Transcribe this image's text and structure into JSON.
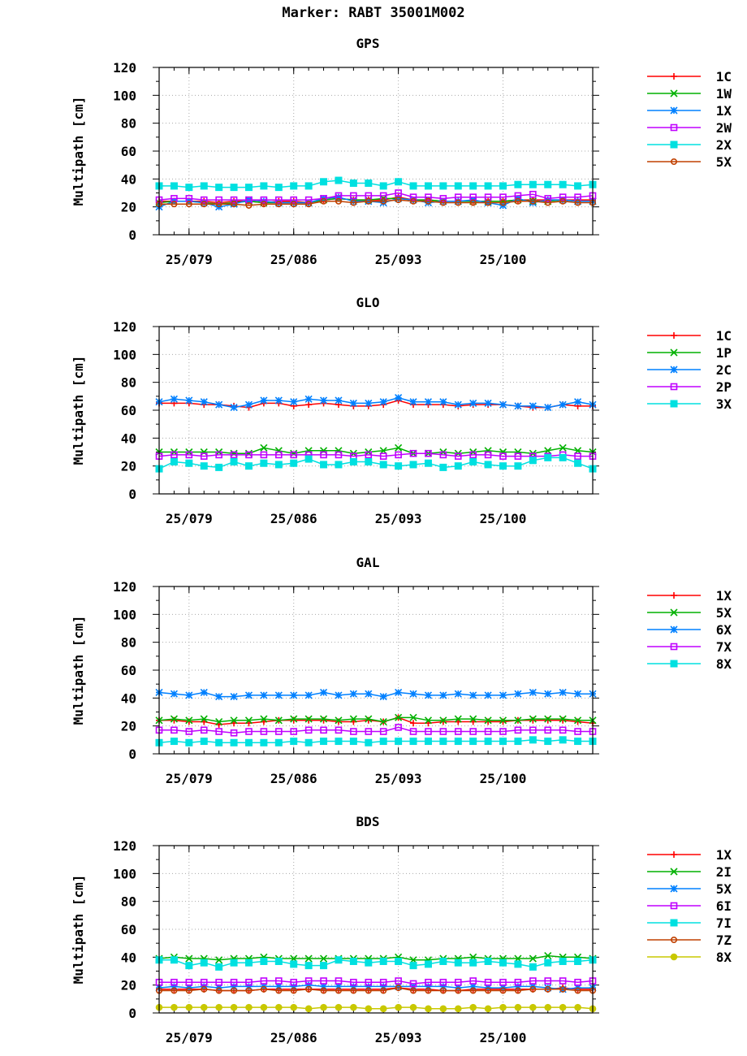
{
  "title": "Marker: RABT 35001M002",
  "colors": {
    "1C": "#ff0000",
    "1W": "#00b000",
    "1X_gps": "#0080ff",
    "2W": "#c000ff",
    "2X": "#00e0e0",
    "5X_gps": "#c04000"
  },
  "chart_data": [
    {
      "type": "line",
      "title": "GPS",
      "ylabel": "Multipath [cm]",
      "ylim": [
        0,
        120
      ],
      "yticks": [
        0,
        20,
        40,
        60,
        80,
        100,
        120
      ],
      "xlim": [
        1,
        30
      ],
      "xticks": [
        {
          "x": 3,
          "label": "25/079"
        },
        {
          "x": 10,
          "label": "25/086"
        },
        {
          "x": 17,
          "label": "25/093"
        },
        {
          "x": 24,
          "label": "25/100"
        }
      ],
      "x": [
        1,
        2,
        3,
        4,
        5,
        6,
        7,
        8,
        9,
        10,
        11,
        12,
        13,
        14,
        15,
        16,
        17,
        18,
        19,
        20,
        21,
        22,
        23,
        24,
        25,
        26,
        27,
        28,
        29,
        30
      ],
      "series": [
        {
          "name": "1C",
          "color": "#ff0000",
          "marker": "plus",
          "values": [
            24,
            24,
            24,
            24,
            23,
            24,
            24,
            23,
            24,
            24,
            23,
            25,
            26,
            25,
            25,
            25,
            27,
            25,
            25,
            24,
            24,
            24,
            24,
            24,
            25,
            25,
            25,
            25,
            25,
            25
          ]
        },
        {
          "name": "1W",
          "color": "#00b000",
          "marker": "x",
          "values": [
            23,
            24,
            24,
            23,
            22,
            23,
            24,
            23,
            23,
            23,
            23,
            25,
            26,
            25,
            25,
            26,
            26,
            25,
            25,
            24,
            24,
            24,
            24,
            24,
            25,
            24,
            24,
            25,
            24,
            24
          ]
        },
        {
          "name": "1X",
          "color": "#0080ff",
          "marker": "star",
          "values": [
            20,
            24,
            24,
            23,
            20,
            22,
            25,
            24,
            23,
            23,
            23,
            26,
            27,
            24,
            24,
            23,
            26,
            25,
            23,
            24,
            24,
            25,
            23,
            21,
            26,
            23,
            25,
            25,
            24,
            24
          ]
        },
        {
          "name": "2W",
          "color": "#c000ff",
          "marker": "square",
          "values": [
            25,
            26,
            26,
            25,
            25,
            25,
            25,
            25,
            25,
            25,
            25,
            26,
            28,
            28,
            28,
            28,
            30,
            27,
            27,
            26,
            27,
            27,
            27,
            27,
            28,
            29,
            26,
            27,
            27,
            28
          ]
        },
        {
          "name": "2X",
          "color": "#00e0e0",
          "marker": "filledsquare",
          "values": [
            35,
            35,
            34,
            35,
            34,
            34,
            34,
            35,
            34,
            35,
            35,
            38,
            39,
            37,
            37,
            35,
            38,
            35,
            35,
            35,
            35,
            35,
            35,
            35,
            36,
            36,
            36,
            36,
            35,
            36
          ]
        },
        {
          "name": "5X",
          "color": "#c04000",
          "marker": "circle",
          "values": [
            22,
            22,
            22,
            22,
            22,
            22,
            21,
            22,
            22,
            22,
            22,
            24,
            24,
            23,
            24,
            24,
            25,
            24,
            24,
            23,
            23,
            23,
            23,
            23,
            24,
            24,
            23,
            24,
            23,
            23
          ]
        }
      ]
    },
    {
      "type": "line",
      "title": "GLO",
      "ylabel": "Multipath [cm]",
      "ylim": [
        0,
        120
      ],
      "yticks": [
        0,
        20,
        40,
        60,
        80,
        100,
        120
      ],
      "xlim": [
        1,
        30
      ],
      "xticks": [
        {
          "x": 3,
          "label": "25/079"
        },
        {
          "x": 10,
          "label": "25/086"
        },
        {
          "x": 17,
          "label": "25/093"
        },
        {
          "x": 24,
          "label": "25/100"
        }
      ],
      "x": [
        1,
        2,
        3,
        4,
        5,
        6,
        7,
        8,
        9,
        10,
        11,
        12,
        13,
        14,
        15,
        16,
        17,
        18,
        19,
        20,
        21,
        22,
        23,
        24,
        25,
        26,
        27,
        28,
        29,
        30
      ],
      "series": [
        {
          "name": "1C",
          "color": "#ff0000",
          "marker": "plus",
          "values": [
            65,
            65,
            65,
            64,
            64,
            63,
            62,
            65,
            65,
            63,
            64,
            65,
            64,
            63,
            63,
            64,
            67,
            64,
            64,
            64,
            63,
            64,
            64,
            64,
            63,
            62,
            62,
            64,
            63,
            63
          ]
        },
        {
          "name": "1P",
          "color": "#00b000",
          "marker": "x",
          "values": [
            30,
            30,
            30,
            30,
            30,
            29,
            29,
            33,
            31,
            29,
            31,
            31,
            31,
            29,
            30,
            31,
            33,
            29,
            29,
            30,
            29,
            30,
            31,
            30,
            30,
            29,
            31,
            33,
            31,
            30
          ]
        },
        {
          "name": "2C",
          "color": "#0080ff",
          "marker": "star",
          "values": [
            66,
            68,
            67,
            66,
            64,
            62,
            64,
            67,
            67,
            66,
            68,
            67,
            67,
            65,
            65,
            66,
            69,
            66,
            66,
            66,
            64,
            65,
            65,
            64,
            63,
            63,
            62,
            64,
            66,
            64
          ]
        },
        {
          "name": "2P",
          "color": "#c000ff",
          "marker": "square",
          "values": [
            27,
            28,
            28,
            27,
            28,
            28,
            28,
            28,
            28,
            28,
            28,
            28,
            28,
            27,
            28,
            27,
            28,
            29,
            29,
            28,
            27,
            28,
            28,
            27,
            27,
            27,
            27,
            28,
            27,
            27
          ]
        },
        {
          "name": "3X",
          "color": "#00e0e0",
          "marker": "filledsquare",
          "values": [
            18,
            23,
            22,
            20,
            19,
            23,
            20,
            22,
            21,
            22,
            25,
            21,
            21,
            23,
            23,
            21,
            20,
            21,
            22,
            19,
            20,
            23,
            21,
            20,
            20,
            24,
            26,
            26,
            22,
            18
          ]
        }
      ]
    },
    {
      "type": "line",
      "title": "GAL",
      "ylabel": "Multipath [cm]",
      "ylim": [
        0,
        120
      ],
      "yticks": [
        0,
        20,
        40,
        60,
        80,
        100,
        120
      ],
      "xlim": [
        1,
        30
      ],
      "xticks": [
        {
          "x": 3,
          "label": "25/079"
        },
        {
          "x": 10,
          "label": "25/086"
        },
        {
          "x": 17,
          "label": "25/093"
        },
        {
          "x": 24,
          "label": "25/100"
        }
      ],
      "x": [
        1,
        2,
        3,
        4,
        5,
        6,
        7,
        8,
        9,
        10,
        11,
        12,
        13,
        14,
        15,
        16,
        17,
        18,
        19,
        20,
        21,
        22,
        23,
        24,
        25,
        26,
        27,
        28,
        29,
        30
      ],
      "series": [
        {
          "name": "1X",
          "color": "#ff0000",
          "marker": "plus",
          "values": [
            24,
            24,
            23,
            23,
            21,
            22,
            22,
            23,
            24,
            24,
            24,
            24,
            23,
            23,
            24,
            23,
            26,
            22,
            22,
            23,
            23,
            23,
            23,
            23,
            24,
            24,
            24,
            24,
            23,
            22
          ]
        },
        {
          "name": "5X",
          "color": "#00b000",
          "marker": "x",
          "values": [
            24,
            25,
            24,
            25,
            23,
            24,
            24,
            25,
            24,
            25,
            25,
            25,
            24,
            25,
            25,
            23,
            26,
            26,
            24,
            24,
            25,
            25,
            24,
            24,
            24,
            25,
            25,
            25,
            24,
            24
          ]
        },
        {
          "name": "6X",
          "color": "#0080ff",
          "marker": "star",
          "values": [
            44,
            43,
            42,
            44,
            41,
            41,
            42,
            42,
            42,
            42,
            42,
            44,
            42,
            43,
            43,
            41,
            44,
            43,
            42,
            42,
            43,
            42,
            42,
            42,
            43,
            44,
            43,
            44,
            43,
            43
          ]
        },
        {
          "name": "7X",
          "color": "#c000ff",
          "marker": "square",
          "values": [
            17,
            17,
            16,
            17,
            16,
            15,
            16,
            16,
            16,
            16,
            17,
            17,
            17,
            16,
            16,
            16,
            19,
            16,
            16,
            16,
            16,
            16,
            16,
            16,
            17,
            17,
            17,
            17,
            16,
            16
          ]
        },
        {
          "name": "8X",
          "color": "#00e0e0",
          "marker": "filledsquare",
          "values": [
            8,
            9,
            8,
            9,
            8,
            8,
            8,
            8,
            8,
            9,
            8,
            9,
            9,
            9,
            8,
            9,
            9,
            9,
            9,
            9,
            9,
            9,
            9,
            9,
            9,
            10,
            9,
            10,
            9,
            9
          ]
        }
      ]
    },
    {
      "type": "line",
      "title": "BDS",
      "ylabel": "Multipath [cm]",
      "ylim": [
        0,
        120
      ],
      "yticks": [
        0,
        20,
        40,
        60,
        80,
        100,
        120
      ],
      "xlim": [
        1,
        30
      ],
      "xticks": [
        {
          "x": 3,
          "label": "25/079"
        },
        {
          "x": 10,
          "label": "25/086"
        },
        {
          "x": 17,
          "label": "25/093"
        },
        {
          "x": 24,
          "label": "25/100"
        }
      ],
      "x": [
        1,
        2,
        3,
        4,
        5,
        6,
        7,
        8,
        9,
        10,
        11,
        12,
        13,
        14,
        15,
        16,
        17,
        18,
        19,
        20,
        21,
        22,
        23,
        24,
        25,
        26,
        27,
        28,
        29,
        30
      ],
      "series": [
        {
          "name": "1X",
          "color": "#ff0000",
          "marker": "plus",
          "values": [
            17,
            17,
            17,
            17,
            16,
            16,
            16,
            17,
            17,
            17,
            17,
            17,
            17,
            17,
            17,
            17,
            18,
            17,
            17,
            16,
            16,
            17,
            17,
            17,
            17,
            17,
            17,
            18,
            17,
            17
          ]
        },
        {
          "name": "2I",
          "color": "#00b000",
          "marker": "x",
          "values": [
            39,
            40,
            39,
            39,
            38,
            39,
            39,
            40,
            39,
            39,
            39,
            39,
            39,
            39,
            39,
            39,
            40,
            38,
            38,
            39,
            39,
            40,
            39,
            39,
            39,
            39,
            41,
            40,
            40,
            39
          ]
        },
        {
          "name": "5X",
          "color": "#0080ff",
          "marker": "star",
          "values": [
            18,
            19,
            18,
            19,
            18,
            19,
            19,
            19,
            19,
            19,
            20,
            19,
            19,
            19,
            19,
            19,
            19,
            19,
            19,
            19,
            18,
            19,
            18,
            18,
            19,
            19,
            18,
            17,
            18,
            18
          ]
        },
        {
          "name": "6I",
          "color": "#c000ff",
          "marker": "square",
          "values": [
            22,
            22,
            22,
            22,
            22,
            22,
            22,
            23,
            23,
            22,
            23,
            23,
            23,
            22,
            22,
            22,
            23,
            21,
            22,
            22,
            22,
            23,
            22,
            22,
            22,
            23,
            23,
            23,
            22,
            23
          ]
        },
        {
          "name": "7I",
          "color": "#00e0e0",
          "marker": "filledsquare",
          "values": [
            38,
            38,
            34,
            36,
            33,
            36,
            36,
            37,
            37,
            35,
            34,
            34,
            38,
            37,
            36,
            37,
            37,
            34,
            35,
            37,
            36,
            36,
            37,
            36,
            35,
            33,
            36,
            37,
            37,
            38
          ]
        },
        {
          "name": "7Z",
          "color": "#c04000",
          "marker": "circle",
          "values": [
            16,
            16,
            16,
            17,
            16,
            16,
            16,
            17,
            16,
            16,
            17,
            16,
            16,
            16,
            16,
            16,
            18,
            16,
            16,
            16,
            16,
            16,
            16,
            16,
            16,
            17,
            17,
            17,
            16,
            16
          ]
        },
        {
          "name": "8X",
          "color": "#c8c800",
          "marker": "filledcircle",
          "values": [
            4,
            4,
            4,
            4,
            4,
            4,
            4,
            4,
            4,
            4,
            3,
            4,
            4,
            4,
            3,
            3,
            4,
            4,
            3,
            3,
            3,
            4,
            3,
            4,
            4,
            4,
            4,
            4,
            4,
            3
          ]
        }
      ]
    }
  ]
}
